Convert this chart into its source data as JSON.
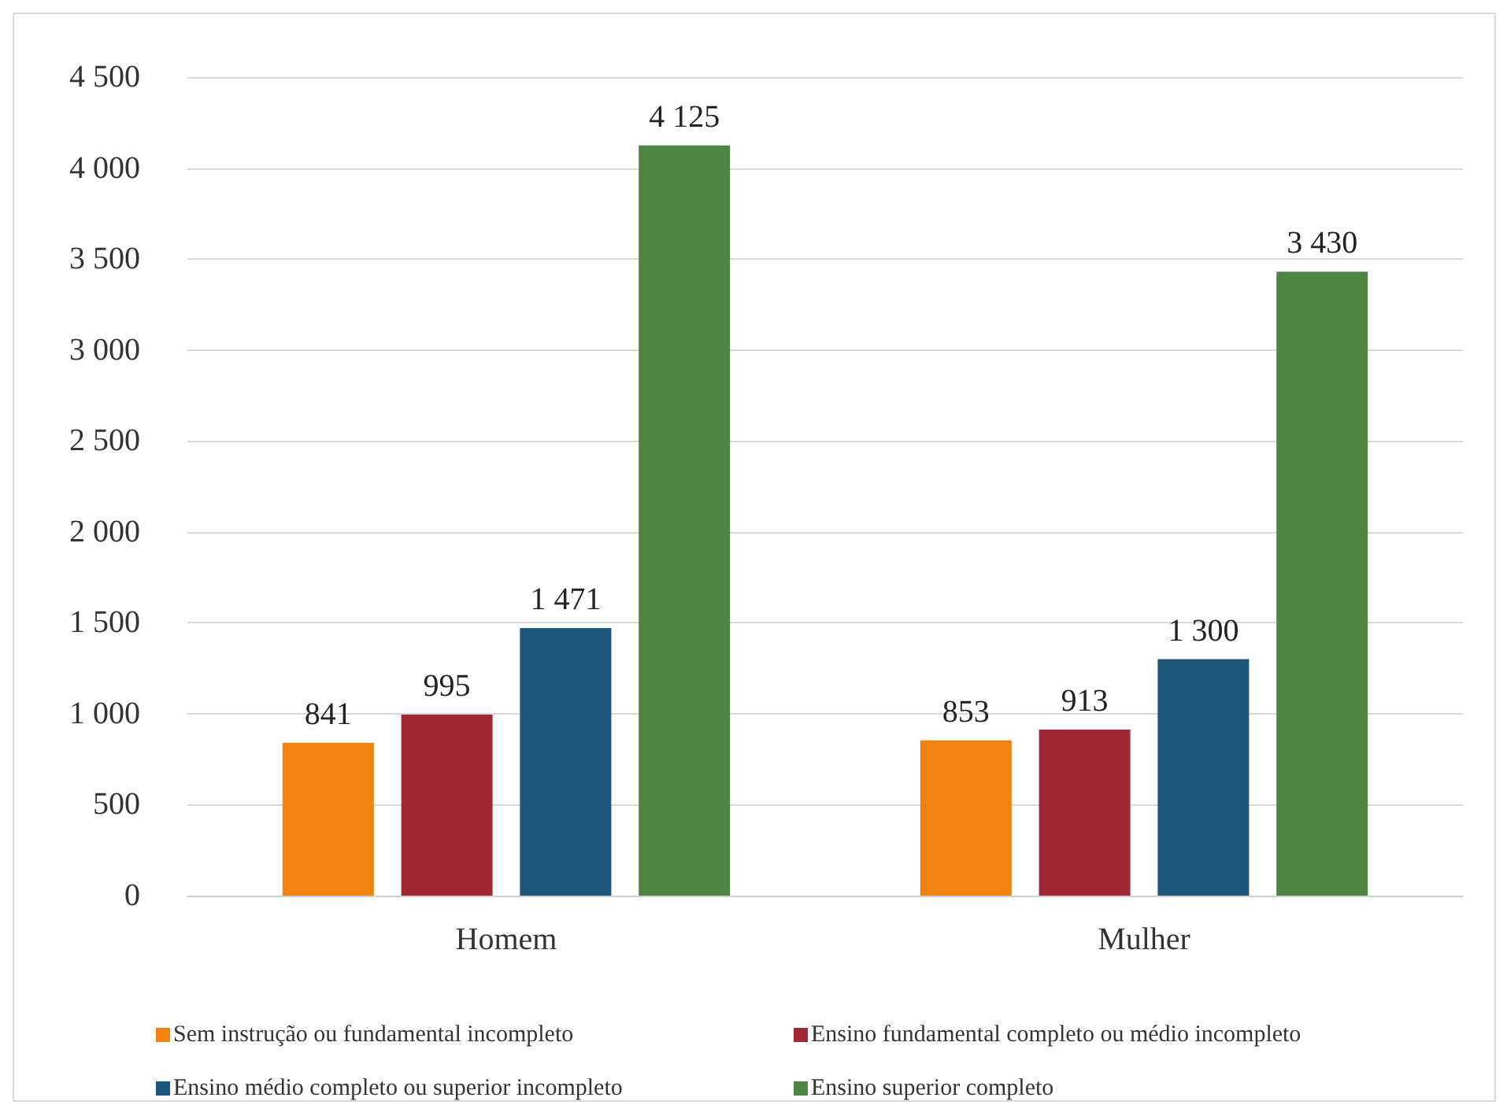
{
  "chart_data": {
    "type": "bar",
    "categories": [
      "Homem",
      "Mulher"
    ],
    "series": [
      {
        "name": "Sem instrução ou fundamental incompleto",
        "color": "#f0820f",
        "values": [
          841,
          853
        ],
        "value_labels": [
          "841",
          "853"
        ]
      },
      {
        "name": "Ensino fundamental completo ou médio incompleto",
        "color": "#a02837",
        "values": [
          995,
          913
        ],
        "value_labels": [
          "995",
          "913"
        ]
      },
      {
        "name": "Ensino médio completo ou superior incompleto",
        "color": "#1f567c",
        "values": [
          1471,
          1300
        ],
        "value_labels": [
          "1 471",
          "1 300"
        ]
      },
      {
        "name": "Ensino superior completo",
        "color": "#4e8542",
        "values": [
          4125,
          3430
        ],
        "value_labels": [
          "4 125",
          "3 430"
        ]
      }
    ],
    "ylim": [
      0,
      4500
    ],
    "yticks": [
      0,
      {
        "value": 500,
        "label": "500"
      },
      {
        "value": 1000,
        "label": "1 000"
      },
      {
        "value": 1500,
        "label": "1 500"
      },
      {
        "value": 2000,
        "label": "2 000"
      },
      {
        "value": 2500,
        "label": "2 500"
      },
      {
        "value": 3000,
        "label": "3 000"
      },
      {
        "value": 3500,
        "label": "3 500"
      },
      {
        "value": 4000,
        "label": "4 000"
      },
      {
        "value": 4500,
        "label": "4 500"
      }
    ],
    "grid": "y",
    "legend": "bottom",
    "marker": "square"
  }
}
